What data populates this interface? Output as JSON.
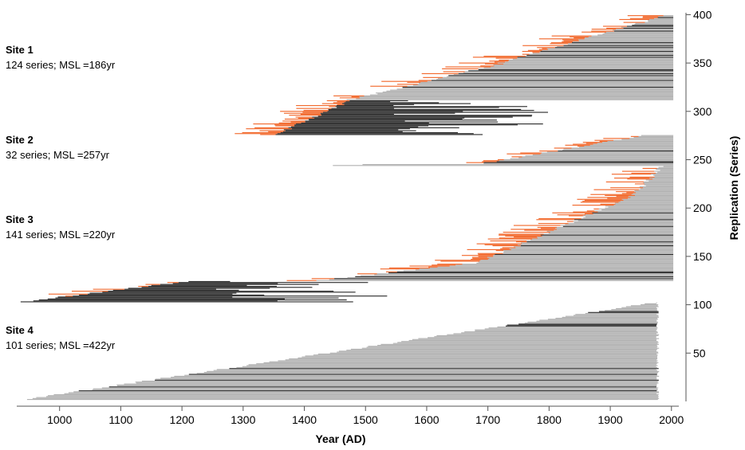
{
  "chart_data": {
    "type": "bar",
    "xlabel": "Year (AD)",
    "ylabel": "Replication (Series)",
    "xlim": [
      930,
      2012
    ],
    "ylim": [
      0,
      402
    ],
    "x_ticks": [
      "1000",
      "1100",
      "1200",
      "1300",
      "1400",
      "1500",
      "1600",
      "1700",
      "1800",
      "1900",
      "2000"
    ],
    "y_ticks": [
      "50",
      "100",
      "150",
      "200",
      "250",
      "300",
      "350",
      "400"
    ],
    "grid": false,
    "colors": {
      "grey": "#b3b3b3",
      "dark": "#2f2f2f",
      "orange": "#f26a2e"
    },
    "sites": [
      {
        "name": "Site 1",
        "stats": "124 series; MSL =186yr",
        "series_count": 124,
        "y_start": 276,
        "last_year": 2003,
        "segments": [
          {
            "count": 36,
            "start": [
              1353,
              1475
            ],
            "end": [
              1540,
              1810
            ],
            "color": "dark",
            "orange_frac": 0.85,
            "dark_frac": 0.05
          },
          {
            "count": 38,
            "start": [
              1475,
              1720
            ],
            "end": [
              2003,
              2003
            ],
            "color": "grey",
            "orange_frac": 0.4,
            "dark_frac": 0.2
          },
          {
            "count": 50,
            "start": [
              1720,
              1990
            ],
            "end": [
              2003,
              2003
            ],
            "color": "grey",
            "orange_frac": 0.65,
            "dark_frac": 0.18
          }
        ]
      },
      {
        "name": "Site 2",
        "stats": "32 series; MSL =257yr",
        "series_count": 32,
        "y_start": 244,
        "last_year": 2003,
        "segments": [
          {
            "count": 2,
            "start": [
              1445,
              1500
            ],
            "end": [
              2003,
              2003
            ],
            "color": "grey",
            "orange_frac": 0,
            "dark_frac": 0
          },
          {
            "count": 30,
            "start": [
              1690,
              1955
            ],
            "end": [
              2003,
              2003
            ],
            "color": "grey",
            "orange_frac": 0.6,
            "dark_frac": 0.05
          }
        ]
      },
      {
        "name": "Site 3",
        "stats": "141 series; MSL =220yr",
        "series_count": 141,
        "y_start": 103,
        "last_year": 2003,
        "segments": [
          {
            "count": 22,
            "start": [
              940,
              1205
            ],
            "end": [
              1255,
              1540
            ],
            "color": "dark",
            "orange_frac": 0.3,
            "dark_frac": 0
          },
          {
            "count": 20,
            "start": [
              1425,
              1690
            ],
            "end": [
              2003,
              2003
            ],
            "color": "grey",
            "orange_frac": 0.6,
            "dark_frac": 0.35
          },
          {
            "count": 70,
            "start": [
              1690,
              1940
            ],
            "end": [
              2003,
              2003
            ],
            "color": "grey",
            "orange_frac": 0.75,
            "dark_frac": 0.05
          },
          {
            "count": 29,
            "start": [
              1940,
              1985
            ],
            "end": [
              2003,
              2003
            ],
            "color": "grey",
            "orange_frac": 0.45,
            "dark_frac": 0
          }
        ]
      },
      {
        "name": "Site 4",
        "stats": "101 series; MSL =422yr",
        "series_count": 101,
        "y_start": 2,
        "last_year": 1980,
        "segments": [
          {
            "count": 101,
            "start": [
              945,
              1970
            ],
            "end": [
              1975,
              1980
            ],
            "color": "grey",
            "orange_frac": 0,
            "dark_frac": 0.1
          }
        ]
      }
    ]
  }
}
